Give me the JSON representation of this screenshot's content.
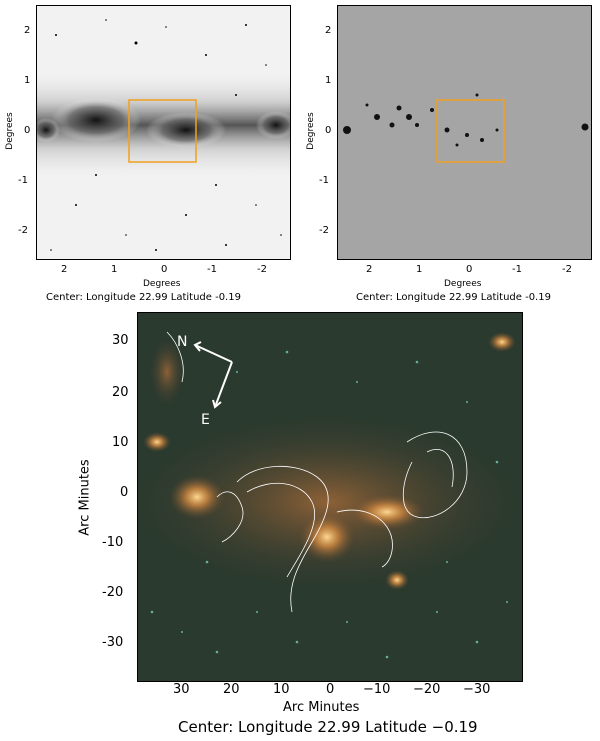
{
  "top_left": {
    "xlabel": "Degrees",
    "ylabel": "Degrees",
    "x_ticks": [
      "2",
      "1",
      "0",
      "-1",
      "-2"
    ],
    "y_ticks": [
      "2",
      "1",
      "0",
      "-1",
      "-2"
    ],
    "caption": "Center:  Longitude 22.99 Latitude -0.19"
  },
  "top_right": {
    "xlabel": "Degrees",
    "ylabel": "Degrees",
    "x_ticks": [
      "2",
      "1",
      "0",
      "-1",
      "-2"
    ],
    "y_ticks": [
      "2",
      "1",
      "0",
      "-1",
      "-2"
    ],
    "caption": "Center:  Longitude 22.99 Latitude -0.19"
  },
  "bottom": {
    "xlabel": "Arc Minutes",
    "ylabel": "Arc Minutes",
    "x_ticks": [
      "30",
      "20",
      "10",
      "0",
      "−10",
      "−20",
      "−30"
    ],
    "y_ticks": [
      "30",
      "20",
      "10",
      "0",
      "-10",
      "-20",
      "-30"
    ],
    "compass_n": "N",
    "compass_e": "E",
    "caption": "Center:  Longitude 22.99 Latitude −0.19"
  },
  "colors": {
    "box_outline": "#f0a020",
    "contour": "#ffffff",
    "image_bg": "#2a3a2e"
  }
}
